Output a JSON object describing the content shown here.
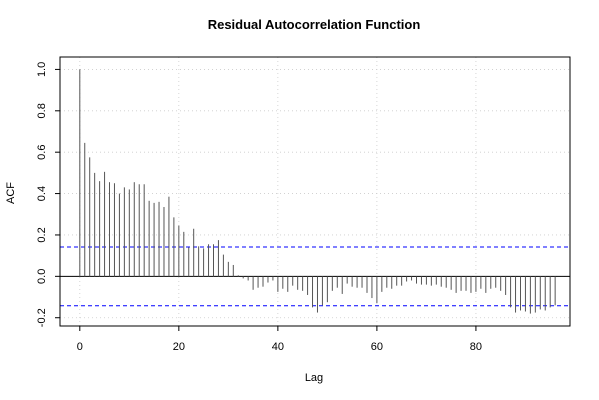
{
  "chart_data": {
    "type": "bar",
    "title": "Residual Autocorrelation Function",
    "xlabel": "Lag",
    "ylabel": "ACF",
    "xlim": [
      -4,
      99
    ],
    "ylim": [
      -0.24,
      1.06
    ],
    "xticks": [
      0,
      20,
      40,
      60,
      80
    ],
    "yticks": [
      -0.2,
      0.0,
      0.2,
      0.4,
      0.6,
      0.8,
      1.0
    ],
    "ytick_labels": [
      "-0.2",
      "0.0",
      "0.2",
      "0.4",
      "0.6",
      "0.8",
      "1.0"
    ],
    "grid": true,
    "confidence_band": [
      0.142,
      -0.142
    ],
    "colors": {
      "bars": "#555555",
      "confidence_band": "#0000ff",
      "zero_line": "#000000",
      "grid": "#cccccc"
    },
    "x": [
      0,
      1,
      2,
      3,
      4,
      5,
      6,
      7,
      8,
      9,
      10,
      11,
      12,
      13,
      14,
      15,
      16,
      17,
      18,
      19,
      20,
      21,
      22,
      23,
      24,
      25,
      26,
      27,
      28,
      29,
      30,
      31,
      32,
      33,
      34,
      35,
      36,
      37,
      38,
      39,
      40,
      41,
      42,
      43,
      44,
      45,
      46,
      47,
      48,
      49,
      50,
      51,
      52,
      53,
      54,
      55,
      56,
      57,
      58,
      59,
      60,
      61,
      62,
      63,
      64,
      65,
      66,
      67,
      68,
      69,
      70,
      71,
      72,
      73,
      74,
      75,
      76,
      77,
      78,
      79,
      80,
      81,
      82,
      83,
      84,
      85,
      86,
      87,
      88,
      89,
      90,
      91,
      92,
      93,
      94,
      95,
      96
    ],
    "values": [
      1.0,
      0.645,
      0.575,
      0.5,
      0.46,
      0.505,
      0.455,
      0.45,
      0.4,
      0.43,
      0.42,
      0.455,
      0.445,
      0.445,
      0.365,
      0.355,
      0.36,
      0.335,
      0.385,
      0.285,
      0.245,
      0.215,
      0.14,
      0.23,
      0.145,
      0.135,
      0.155,
      0.155,
      0.175,
      0.105,
      0.07,
      0.055,
      0.005,
      -0.01,
      -0.02,
      -0.065,
      -0.055,
      -0.05,
      -0.03,
      -0.02,
      -0.075,
      -0.06,
      -0.075,
      -0.045,
      -0.065,
      -0.07,
      -0.09,
      -0.15,
      -0.175,
      -0.14,
      -0.125,
      -0.07,
      -0.055,
      -0.085,
      -0.035,
      -0.05,
      -0.055,
      -0.055,
      -0.08,
      -0.105,
      -0.13,
      -0.075,
      -0.055,
      -0.06,
      -0.045,
      -0.045,
      -0.025,
      -0.02,
      -0.035,
      -0.04,
      -0.04,
      -0.045,
      -0.04,
      -0.05,
      -0.055,
      -0.065,
      -0.08,
      -0.07,
      -0.07,
      -0.08,
      -0.075,
      -0.06,
      -0.08,
      -0.06,
      -0.055,
      -0.07,
      -0.09,
      -0.15,
      -0.175,
      -0.165,
      -0.17,
      -0.18,
      -0.175,
      -0.16,
      -0.165,
      -0.15,
      -0.14
    ]
  }
}
